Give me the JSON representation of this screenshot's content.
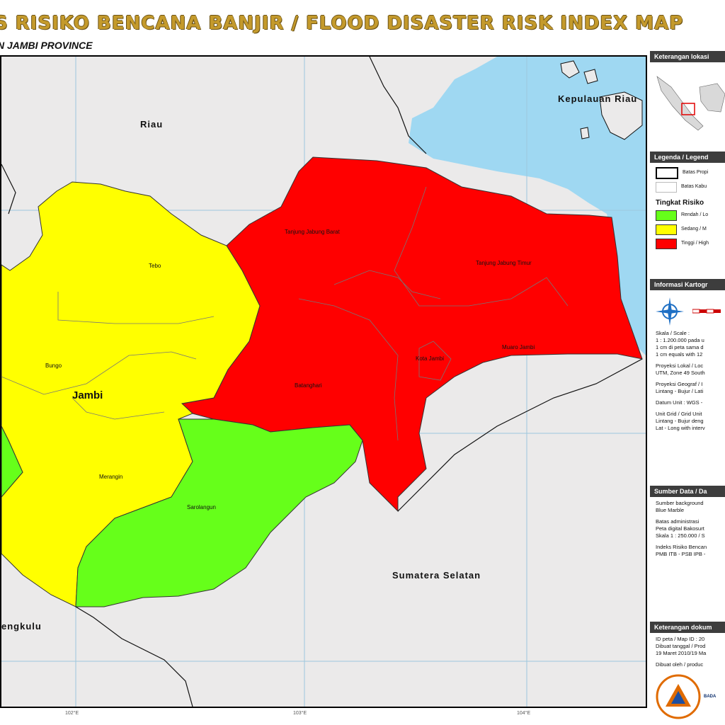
{
  "title": "S RISIKO BENCANA BANJIR / FLOOD DISASTER RISK INDEX MAP",
  "subtitle": "N JAMBI PROVINCE",
  "colors": {
    "high": "#ff0000",
    "medium": "#ffff00",
    "low": "#66ff1a",
    "sea": "#9fd8f2",
    "land": "#ebeaea"
  },
  "map_labels": {
    "riau": "Riau",
    "kepulauan_riau": "Kepulauan Riau",
    "jambi": "Jambi",
    "sumatera_selatan": "Sumatera Selatan",
    "bengkulu": "engkulu",
    "tebo": "Tebo",
    "bungo": "Bungo",
    "merangin": "Merangin",
    "sarolangun": "Sarolangun",
    "batanghari": "Batanghari",
    "muaro_jambi": "Muaro Jambi",
    "kota_jambi": "Kota Jambi",
    "tanjung_jabung_barat": "Tanjung Jabung Barat",
    "tanjung_jabung_timur": "Tanjung Jabung Timur"
  },
  "axis_labels": [
    "102°E",
    "103°E",
    "104°E"
  ],
  "sidebar": {
    "location": {
      "header": "Keterangan lokasi"
    },
    "legend": {
      "header": "Legenda / Legend",
      "boundary_province": "Batas Propi",
      "boundary_regency": "Batas Kabu",
      "risk_header": "Tingkat Risiko",
      "low": "Rendah / Lo",
      "medium": "Sedang / M",
      "high": "Tinggi / High"
    },
    "cartography": {
      "header": "Informasi Kartogr",
      "scale_label": "Skala / Scale :",
      "scale_1": "1 : 1.200.000 pada u",
      "scale_2": "1 cm di peta sama d",
      "scale_3": "1 cm equals with 12",
      "proj_local_1": "Proyeksi Lokal / Loc",
      "proj_local_2": "UTM, Zone 49 South",
      "proj_geo_1": "Proyeksi Geograf / I",
      "proj_geo_2": "Lintang - Bujur / Lati",
      "datum": "Datum Unit : WGS -",
      "grid_1": "Unit Grid / Grid Unit",
      "grid_2": "Lintang - Bujur deng",
      "grid_3": "Lat - Long with interv"
    },
    "source": {
      "header": "Sumber Data / Da",
      "l1": "Sumber background",
      "l2": "Blue Marble",
      "l3": "Batas administrasi",
      "l4": "Peta digital Bakosurt",
      "l5": "Skala 1 : 250.000 / S",
      "l6": "Indeks Risiko Bencan",
      "l7": "PMB ITB - PSB IPB -"
    },
    "document": {
      "header": "Keterangan dokum",
      "l1": "ID peta / Map ID : 20",
      "l2": "Dibuat tanggal / Prod",
      "l3": "19 Maret 2010/19 Ma",
      "l4": "Dibuat oleh / produc",
      "org": "BADA"
    }
  }
}
